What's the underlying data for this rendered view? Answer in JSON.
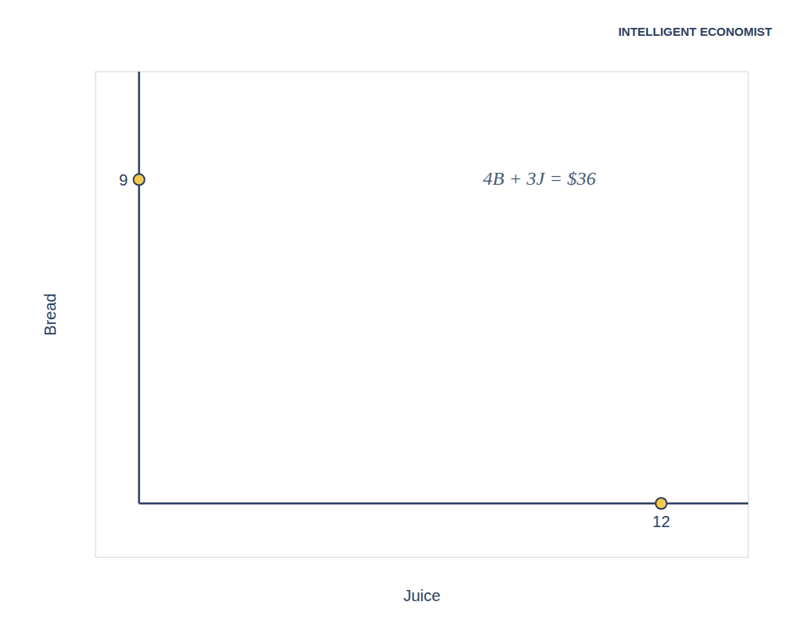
{
  "chart_data": {
    "type": "scatter",
    "xlabel": "Juice",
    "ylabel": "Bread",
    "x": [
      0,
      12
    ],
    "values": [
      9,
      0
    ],
    "color": "#F2C94C",
    "marker": "circle",
    "xlim": [
      -1,
      14
    ],
    "ylim": [
      -1.5,
      12
    ],
    "xticks": [
      12
    ],
    "yticks": [
      9
    ],
    "grid": false,
    "annotations": [
      "4B + 3J = $36",
      "INTELLIGENT ECONOMIST"
    ]
  }
}
